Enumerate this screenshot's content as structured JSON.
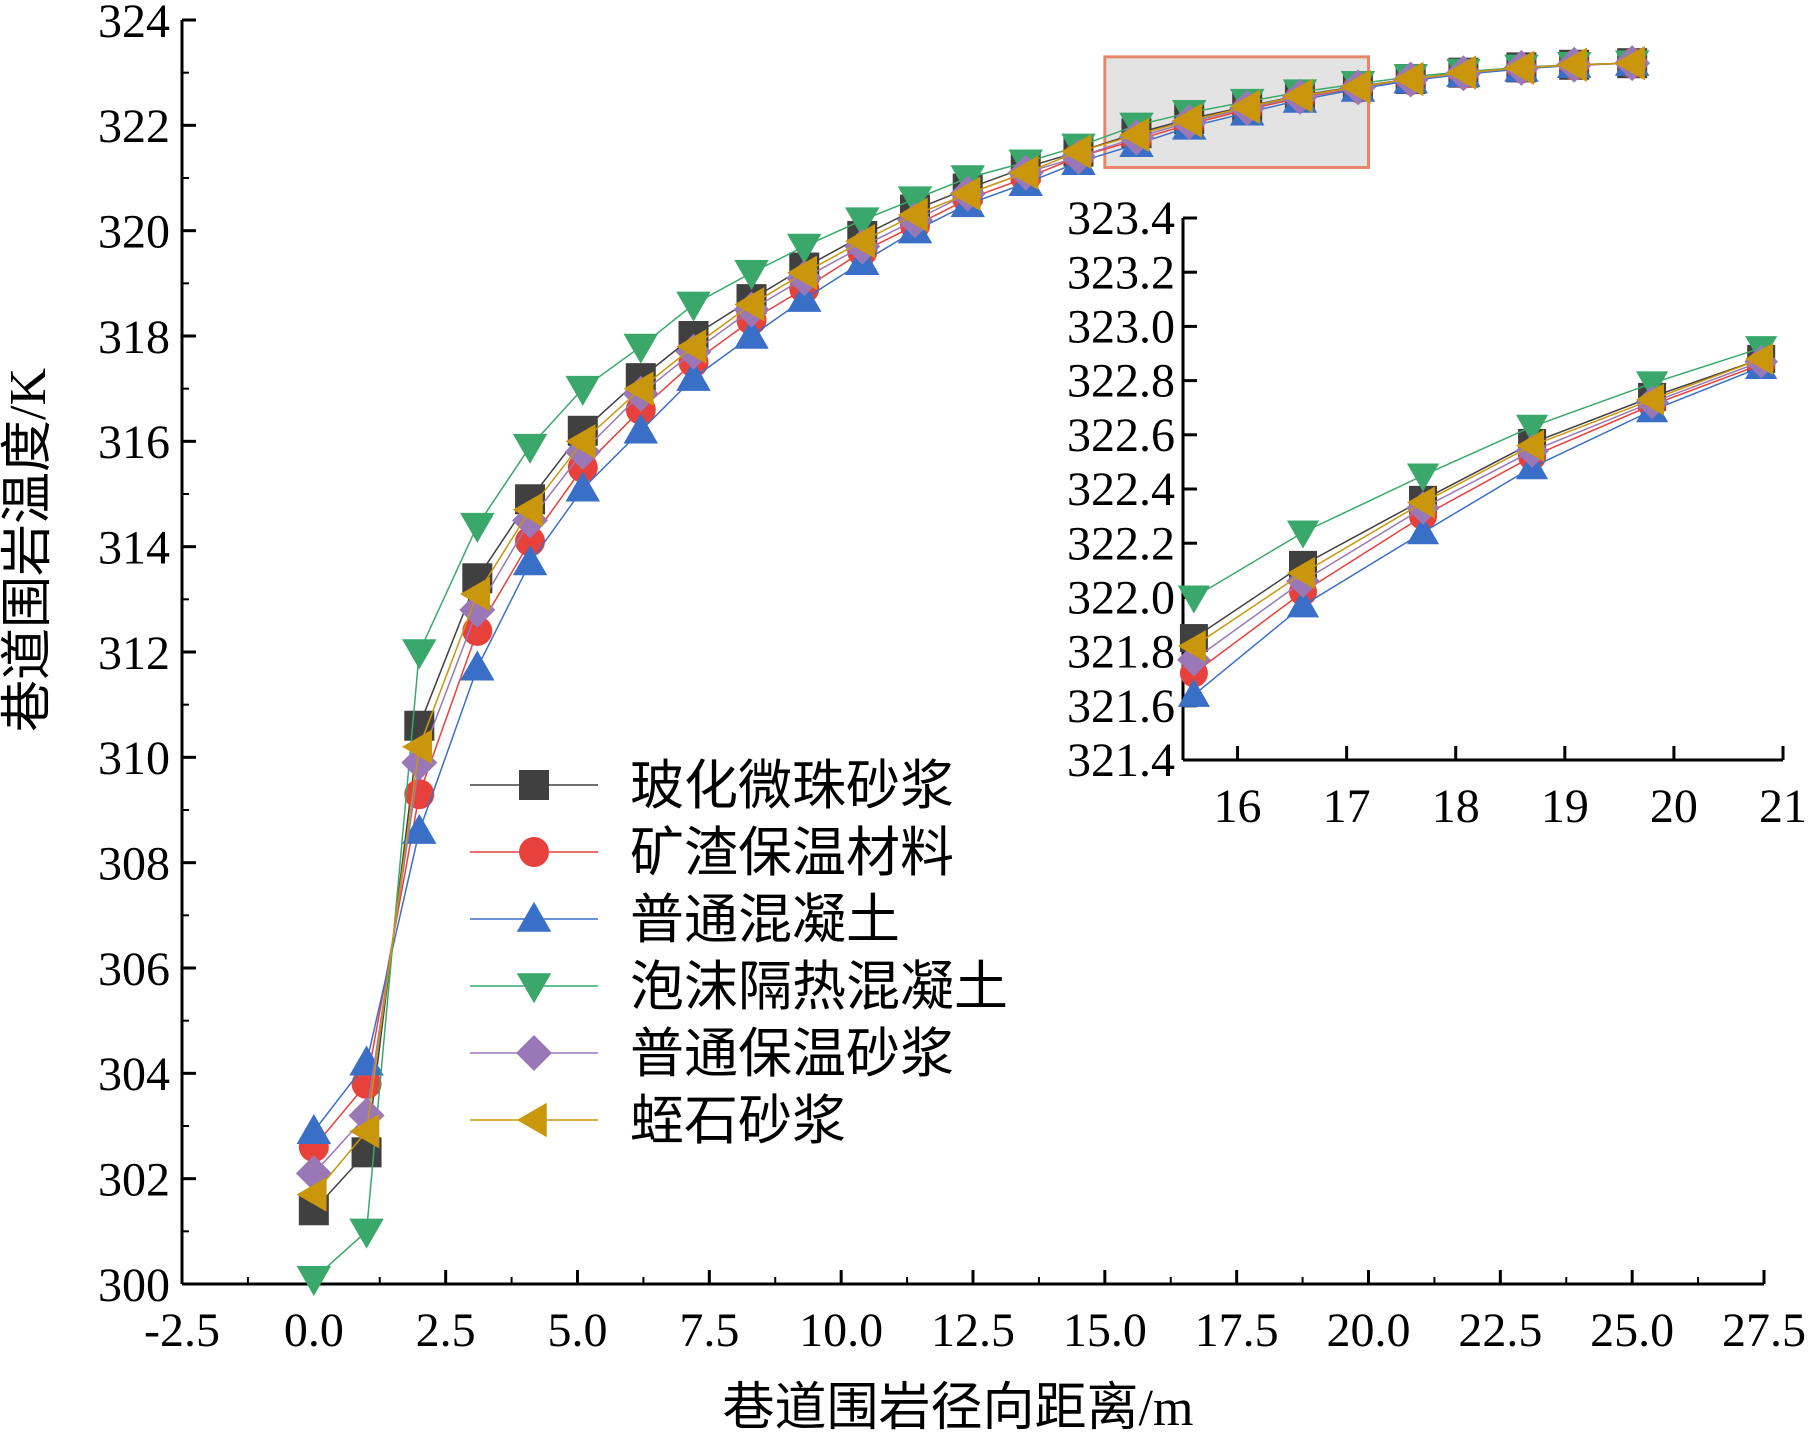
{
  "chart_data": [
    {
      "type": "line",
      "title": "",
      "xlabel": "巷道围岩径向距离/m",
      "ylabel": "巷道围岩温度/K",
      "xlim": [
        -2.5,
        27.5
      ],
      "ylim": [
        300,
        324
      ],
      "x_ticks": [
        "-2.5",
        "0.0",
        "2.5",
        "5.0",
        "7.5",
        "10.0",
        "12.5",
        "15.0",
        "17.5",
        "20.0",
        "22.5",
        "25.0",
        "27.5"
      ],
      "y_ticks": [
        "300",
        "302",
        "304",
        "306",
        "308",
        "310",
        "312",
        "314",
        "316",
        "318",
        "320",
        "322",
        "324"
      ],
      "grid": false,
      "legend_position": "center-left",
      "x": [
        0,
        1,
        2,
        3.1,
        4.1,
        5.1,
        6.2,
        7.2,
        8.3,
        9.3,
        10.4,
        11.4,
        12.4,
        13.5,
        14.5,
        15.6,
        16.6,
        17.7,
        18.7,
        19.8,
        20.8,
        21.8,
        22.9,
        23.9,
        25
      ],
      "series": [
        {
          "name": "玻化微珠砂浆",
          "color": "#404040",
          "marker": "square",
          "values": [
            301.4,
            302.5,
            310.6,
            313.4,
            314.9,
            316.2,
            317.2,
            318.0,
            318.7,
            319.3,
            319.9,
            320.4,
            320.8,
            321.2,
            321.5,
            321.85,
            322.12,
            322.36,
            322.57,
            322.74,
            322.88,
            323.0,
            323.1,
            323.15,
            323.18
          ]
        },
        {
          "name": "矿渣保温材料",
          "color": "#e8413c",
          "marker": "circle",
          "values": [
            302.6,
            303.8,
            309.3,
            312.4,
            314.1,
            315.5,
            316.6,
            317.5,
            318.3,
            318.9,
            319.6,
            320.1,
            320.6,
            321.0,
            321.4,
            321.72,
            322.02,
            322.3,
            322.52,
            322.71,
            322.86,
            322.98,
            323.08,
            323.14,
            323.18
          ]
        },
        {
          "name": "普通混凝土",
          "color": "#3a6fc8",
          "marker": "triangle-up",
          "values": [
            302.9,
            304.2,
            308.6,
            311.7,
            313.7,
            315.1,
            316.2,
            317.2,
            318.0,
            318.7,
            319.4,
            320.0,
            320.5,
            320.9,
            321.3,
            321.64,
            321.97,
            322.24,
            322.48,
            322.69,
            322.85,
            322.97,
            323.07,
            323.14,
            323.18
          ]
        },
        {
          "name": "泡沫隔热混凝土",
          "color": "#3aa86b",
          "marker": "triangle-down",
          "values": [
            300.1,
            301.0,
            312.0,
            314.4,
            315.9,
            317.0,
            317.8,
            318.6,
            319.2,
            319.7,
            320.2,
            320.6,
            321.0,
            321.3,
            321.6,
            322.0,
            322.24,
            322.45,
            322.63,
            322.79,
            322.92,
            323.02,
            323.1,
            323.15,
            323.18
          ]
        },
        {
          "name": "普通保温砂浆",
          "color": "#9a78b8",
          "marker": "diamond",
          "values": [
            302.1,
            303.2,
            309.9,
            312.8,
            314.5,
            315.8,
            316.9,
            317.7,
            318.5,
            319.1,
            319.7,
            320.2,
            320.7,
            321.1,
            321.4,
            321.77,
            322.06,
            322.33,
            322.54,
            322.72,
            322.87,
            322.99,
            323.09,
            323.15,
            323.18
          ]
        },
        {
          "name": "蛭石砂浆",
          "color": "#c9960c",
          "marker": "triangle-left",
          "values": [
            301.7,
            302.9,
            310.2,
            313.1,
            314.7,
            316.0,
            317.0,
            317.8,
            318.6,
            319.2,
            319.8,
            320.3,
            320.7,
            321.1,
            321.5,
            321.82,
            322.09,
            322.35,
            322.56,
            322.73,
            322.88,
            323.0,
            323.09,
            323.15,
            323.18
          ]
        }
      ]
    },
    {
      "type": "line",
      "title": "",
      "xlabel": "",
      "ylabel": "",
      "xlim": [
        15.5,
        21
      ],
      "ylim": [
        321.4,
        323.4
      ],
      "x_ticks": [
        "16",
        "17",
        "18",
        "19",
        "20",
        "21"
      ],
      "y_ticks": [
        "321.4",
        "321.6",
        "321.8",
        "322.0",
        "322.2",
        "322.4",
        "322.6",
        "322.8",
        "323.0",
        "323.2",
        "323.4"
      ],
      "grid": false,
      "note_source_region": "zoom of the highlighted region x 15–20, y 321.2–323.3",
      "x": [
        15.6,
        16.6,
        17.7,
        18.7,
        19.8,
        20.8
      ],
      "series": [
        {
          "name": "玻化微珠砂浆",
          "color": "#404040",
          "marker": "square",
          "values": [
            321.85,
            322.12,
            322.36,
            322.57,
            322.74,
            322.88
          ]
        },
        {
          "name": "矿渣保温材料",
          "color": "#e8413c",
          "marker": "circle",
          "values": [
            321.72,
            322.02,
            322.3,
            322.52,
            322.71,
            322.86
          ]
        },
        {
          "name": "普通混凝土",
          "color": "#3a6fc8",
          "marker": "triangle-up",
          "values": [
            321.64,
            321.97,
            322.24,
            322.48,
            322.69,
            322.85
          ]
        },
        {
          "name": "泡沫隔热混凝土",
          "color": "#3aa86b",
          "marker": "triangle-down",
          "values": [
            322.0,
            322.24,
            322.45,
            322.63,
            322.79,
            322.92
          ]
        },
        {
          "name": "普通保温砂浆",
          "color": "#9a78b8",
          "marker": "diamond",
          "values": [
            321.77,
            322.06,
            322.33,
            322.54,
            322.72,
            322.87
          ]
        },
        {
          "name": "蛭石砂浆",
          "color": "#c9960c",
          "marker": "triangle-left",
          "values": [
            321.82,
            322.09,
            322.35,
            322.56,
            322.73,
            322.88
          ]
        }
      ]
    }
  ],
  "highlight_region": {
    "x": [
      15,
      20
    ],
    "y": [
      321.2,
      323.3
    ],
    "stroke": "#e8866a",
    "fill": "#e3e3e3"
  }
}
